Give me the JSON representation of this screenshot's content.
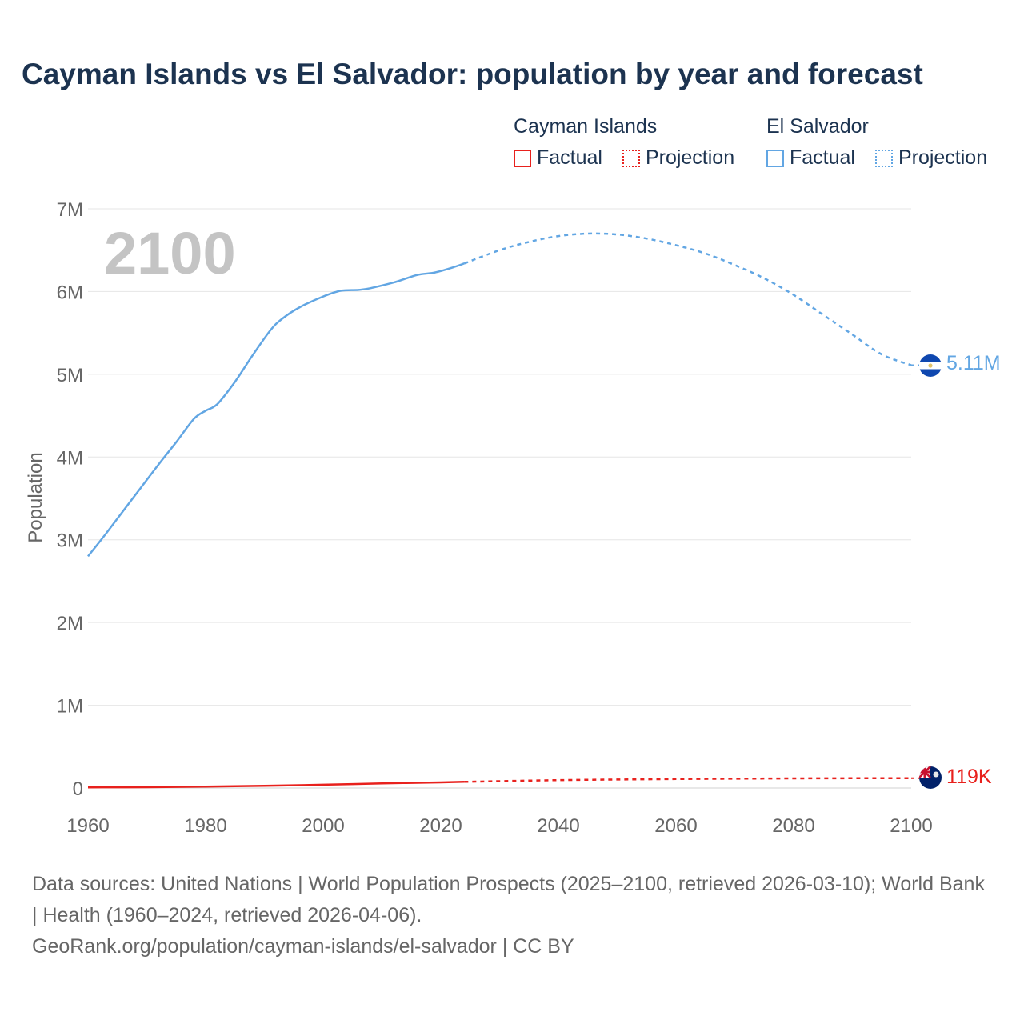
{
  "title": "Cayman Islands vs El Salvador: population by year and forecast",
  "year_label": "2100",
  "legend": {
    "groups": [
      {
        "name": "Cayman Islands",
        "color": "#e8211d",
        "factual": "Factual",
        "projection": "Projection"
      },
      {
        "name": "El Salvador",
        "color": "#62a6e3",
        "factual": "Factual",
        "projection": "Projection"
      }
    ]
  },
  "end_labels": {
    "cayman": "119K",
    "el_salvador": "5.11M"
  },
  "sources": {
    "line1": "Data sources: United Nations | World Population Prospects (2025–2100, retrieved 2026-03-10); World Bank | Health (1960–2024, retrieved 2026-04-06).",
    "line2": "GeoRank.org/population/cayman-islands/el-salvador | CC BY"
  },
  "chart_data": {
    "type": "line",
    "title": "Cayman Islands vs El Salvador: population by year and forecast",
    "xlabel": "",
    "ylabel": "Population",
    "xlim": [
      1960,
      2100
    ],
    "ylim": [
      0,
      7000000
    ],
    "xticks": [
      1960,
      1980,
      2000,
      2020,
      2040,
      2060,
      2080,
      2100
    ],
    "xtick_labels": [
      "1960",
      "1980",
      "2000",
      "2020",
      "2040",
      "2060",
      "2080",
      "2100"
    ],
    "yticks": [
      0,
      1000000,
      2000000,
      3000000,
      4000000,
      5000000,
      6000000,
      7000000
    ],
    "ytick_labels": [
      "0",
      "1M",
      "2M",
      "3M",
      "4M",
      "5M",
      "6M",
      "7M"
    ],
    "grid": true,
    "series": [
      {
        "name": "El Salvador",
        "color": "#62a6e3",
        "factual": {
          "x": [
            1960,
            1963,
            1966,
            1969,
            1972,
            1975,
            1978,
            1980,
            1982,
            1985,
            1988,
            1991,
            1993,
            1996,
            2000,
            2003,
            2006,
            2008,
            2012,
            2016,
            2019,
            2022,
            2024
          ],
          "y": [
            2800000,
            3070000,
            3350000,
            3630000,
            3910000,
            4180000,
            4460000,
            4560000,
            4640000,
            4910000,
            5230000,
            5530000,
            5670000,
            5810000,
            5940000,
            6010000,
            6020000,
            6040000,
            6110000,
            6200000,
            6230000,
            6290000,
            6340000
          ]
        },
        "projection": {
          "x": [
            2024,
            2030,
            2035,
            2040,
            2045,
            2050,
            2055,
            2060,
            2065,
            2070,
            2075,
            2080,
            2085,
            2090,
            2095,
            2100
          ],
          "y": [
            6340000,
            6500000,
            6600000,
            6670000,
            6700000,
            6690000,
            6640000,
            6560000,
            6460000,
            6320000,
            6160000,
            5960000,
            5720000,
            5480000,
            5240000,
            5110000
          ]
        }
      },
      {
        "name": "Cayman Islands",
        "color": "#e8211d",
        "factual": {
          "x": [
            1960,
            1970,
            1980,
            1990,
            2000,
            2010,
            2020,
            2024
          ],
          "y": [
            8000,
            10000,
            17000,
            26000,
            40000,
            55000,
            68000,
            74000
          ]
        },
        "projection": {
          "x": [
            2024,
            2040,
            2060,
            2080,
            2100
          ],
          "y": [
            74000,
            95000,
            108000,
            116000,
            119000
          ]
        }
      }
    ]
  }
}
